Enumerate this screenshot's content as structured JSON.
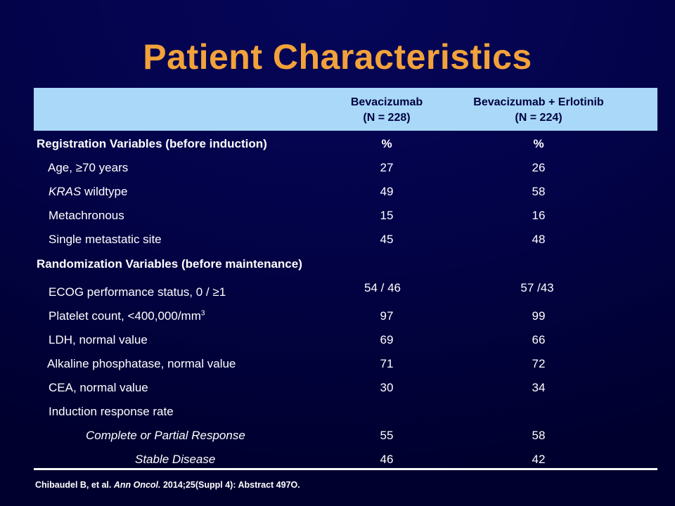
{
  "title": "Patient Characteristics",
  "columns": [
    {
      "line1": "Bevacizumab",
      "line2": "(N = 228)"
    },
    {
      "line1": "Bevacizumab + Erlotinib",
      "line2": "(N = 224)"
    }
  ],
  "rows": [
    {
      "label": "Registration Variables (before induction)",
      "v1": "%",
      "v2": "%"
    },
    {
      "label": "Age, ≥70 years",
      "v1": "27",
      "v2": "26"
    },
    {
      "label_italic": "KRAS",
      "label": " wildtype",
      "v1": "49",
      "v2": "58"
    },
    {
      "label": "Metachronous",
      "v1": "15",
      "v2": "16"
    },
    {
      "label": "Single metastatic site",
      "v1": "45",
      "v2": "48"
    },
    {
      "label": "Randomization Variables (before maintenance)"
    },
    {
      "label": "ECOG performance status, 0 / ≥1",
      "v1": "54 / 46",
      "v2": "57 /43"
    },
    {
      "label": "Platelet count, <400,000/mm",
      "label_sup": "3",
      "v1": "97",
      "v2": "99"
    },
    {
      "label": "LDH, normal value",
      "v1": "69",
      "v2": "66"
    },
    {
      "label": "Alkaline phosphatase, normal value",
      "v1": "71",
      "v2": "72"
    },
    {
      "label": "CEA, normal value",
      "v1": "30",
      "v2": "34"
    },
    {
      "label": "Induction response rate"
    },
    {
      "label": "Complete or Partial Response",
      "v1": "55",
      "v2": "58"
    },
    {
      "label": "Stable Disease",
      "v1": "46",
      "v2": "42"
    }
  ],
  "citation": {
    "authors": "Chibaudel B, et al. ",
    "journal": "Ann Oncol.",
    "details": " 2014;25(Suppl 4): Abstract 497O."
  }
}
